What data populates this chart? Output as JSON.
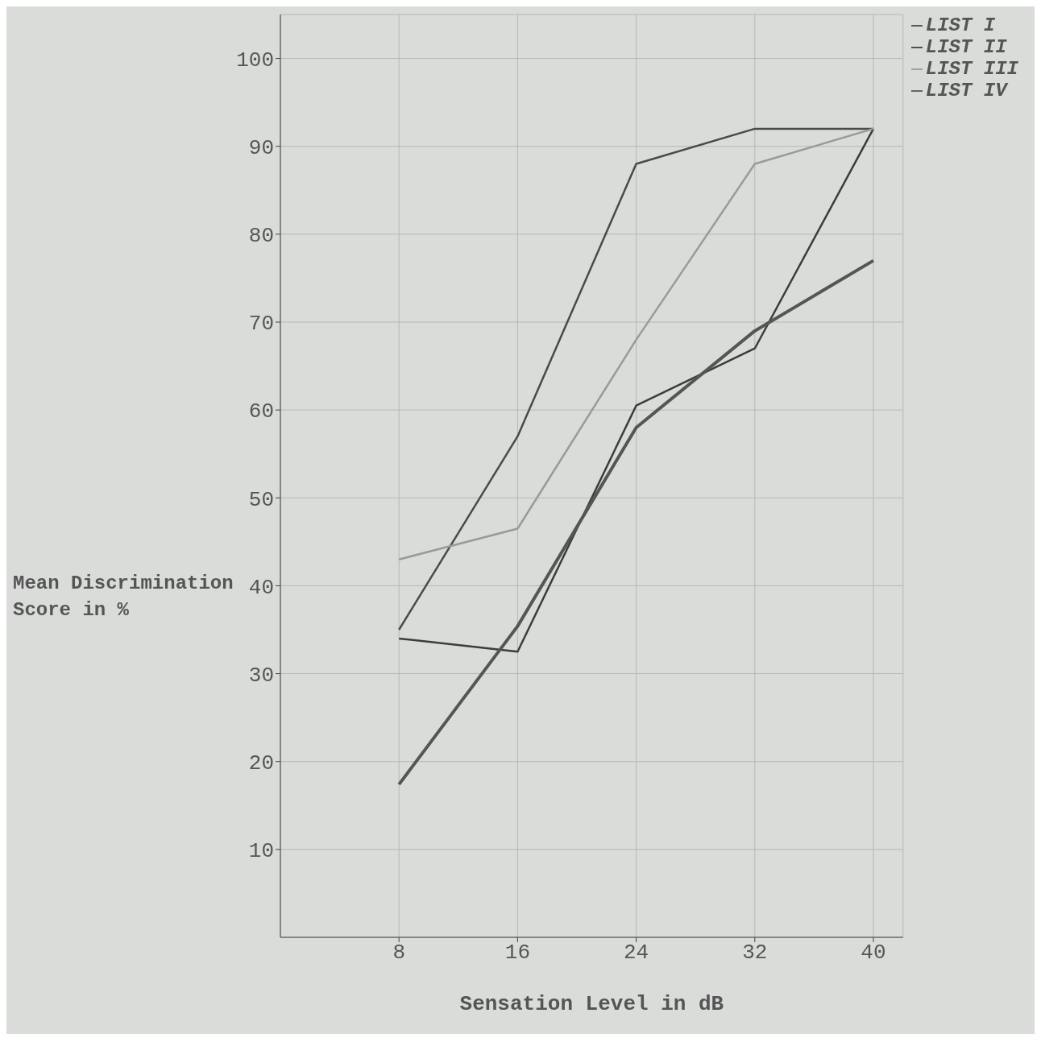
{
  "chart_data": {
    "type": "line",
    "xlabel": "Sensation Level in dB",
    "ylabel": "Mean Discrimination Score in %",
    "x": [
      8,
      16,
      24,
      32,
      40
    ],
    "xlim": [
      0,
      42
    ],
    "xticks": [
      8,
      16,
      24,
      32,
      40
    ],
    "ylim": [
      0,
      105
    ],
    "yticks": [
      10,
      20,
      30,
      40,
      50,
      60,
      70,
      80,
      90,
      100
    ],
    "grid": true,
    "legend": "top right",
    "marker": "none",
    "line_style": "solid",
    "series": [
      {
        "name": "LIST I",
        "color": "#4a4a4a",
        "values": [
          35,
          57,
          88,
          92,
          92
        ]
      },
      {
        "name": "LIST II",
        "color": "#3c3c3c",
        "values": [
          34,
          32.5,
          60.5,
          67,
          92
        ]
      },
      {
        "name": "LIST III",
        "color": "#9a9a9a",
        "values": [
          43,
          46.5,
          68,
          88,
          92
        ]
      },
      {
        "name": "LIST IV",
        "color": "#555555",
        "values": [
          17.4,
          35.4,
          58,
          69,
          77
        ]
      }
    ]
  }
}
